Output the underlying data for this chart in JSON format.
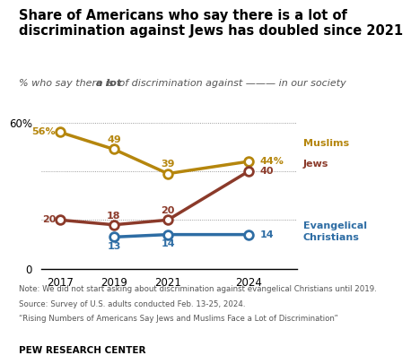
{
  "title": "Share of Americans who say there is a lot of\ndiscrimination against Jews has doubled since 2021",
  "years_muslims": [
    2017,
    2019,
    2021,
    2024
  ],
  "values_muslims": [
    56,
    49,
    39,
    44
  ],
  "years_jews": [
    2017,
    2019,
    2021,
    2024
  ],
  "values_jews": [
    20,
    18,
    20,
    40
  ],
  "years_evan": [
    2019,
    2021,
    2024
  ],
  "values_evan": [
    13,
    14,
    14
  ],
  "color_muslims": "#b5860d",
  "color_jews": "#8b3a2a",
  "color_evan": "#2e6da4",
  "ylim": [
    0,
    65
  ],
  "xticks": [
    2017,
    2019,
    2021,
    2024
  ],
  "note1": "Note: We did not start asking about discrimination against evangelical Christians until 2019.",
  "note2": "Source: Survey of U.S. adults conducted Feb. 13-25, 2024.",
  "note3": "“Rising Numbers of Americans Say Jews and Muslims Face a Lot of Discrimination”",
  "source_label": "PEW RESEARCH CENTER",
  "label_muslims": "Muslims",
  "label_jews": "Jews",
  "label_evan_line1": "Evangelical",
  "label_evan_line2": "Christians",
  "bg_color": "#ffffff"
}
